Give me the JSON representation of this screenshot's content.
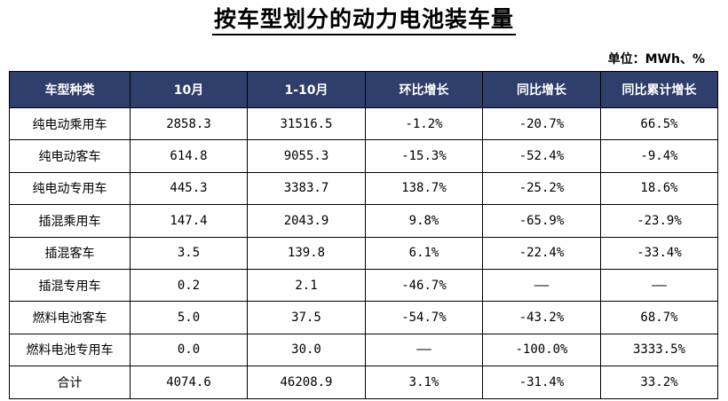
{
  "title": "按车型划分的动力电池装车量",
  "unit": "单位：MWh、%",
  "columns": [
    "车型种类",
    "10月",
    "1-10月",
    "环比增长",
    "同比增长",
    "同比累计增长"
  ],
  "rows": [
    [
      "纯电动乘用车",
      "2858.3",
      "31516.5",
      "-1.2%",
      "-20.7%",
      "66.5%"
    ],
    [
      "纯电动客车",
      "614.8",
      "9055.3",
      "-15.3%",
      "-52.4%",
      "-9.4%"
    ],
    [
      "纯电动专用车",
      "445.3",
      "3383.7",
      "138.7%",
      "-25.2%",
      "18.6%"
    ],
    [
      "插混乘用车",
      "147.4",
      "2043.9",
      "9.8%",
      "-65.9%",
      "-23.9%"
    ],
    [
      "插混客车",
      "3.5",
      "139.8",
      "6.1%",
      "-22.4%",
      "-33.4%"
    ],
    [
      "插混专用车",
      "0.2",
      "2.1",
      "-46.7%",
      "——",
      "——"
    ],
    [
      "燃料电池客车",
      "5.0",
      "37.5",
      "-54.7%",
      "-43.2%",
      "68.7%"
    ],
    [
      "燃料电池专用车",
      "0.0",
      "30.0",
      "——",
      "-100.0%",
      "3333.5%"
    ],
    [
      "合计",
      "4074.6",
      "46208.9",
      "3.1%",
      "-31.4%",
      "33.2%"
    ]
  ]
}
